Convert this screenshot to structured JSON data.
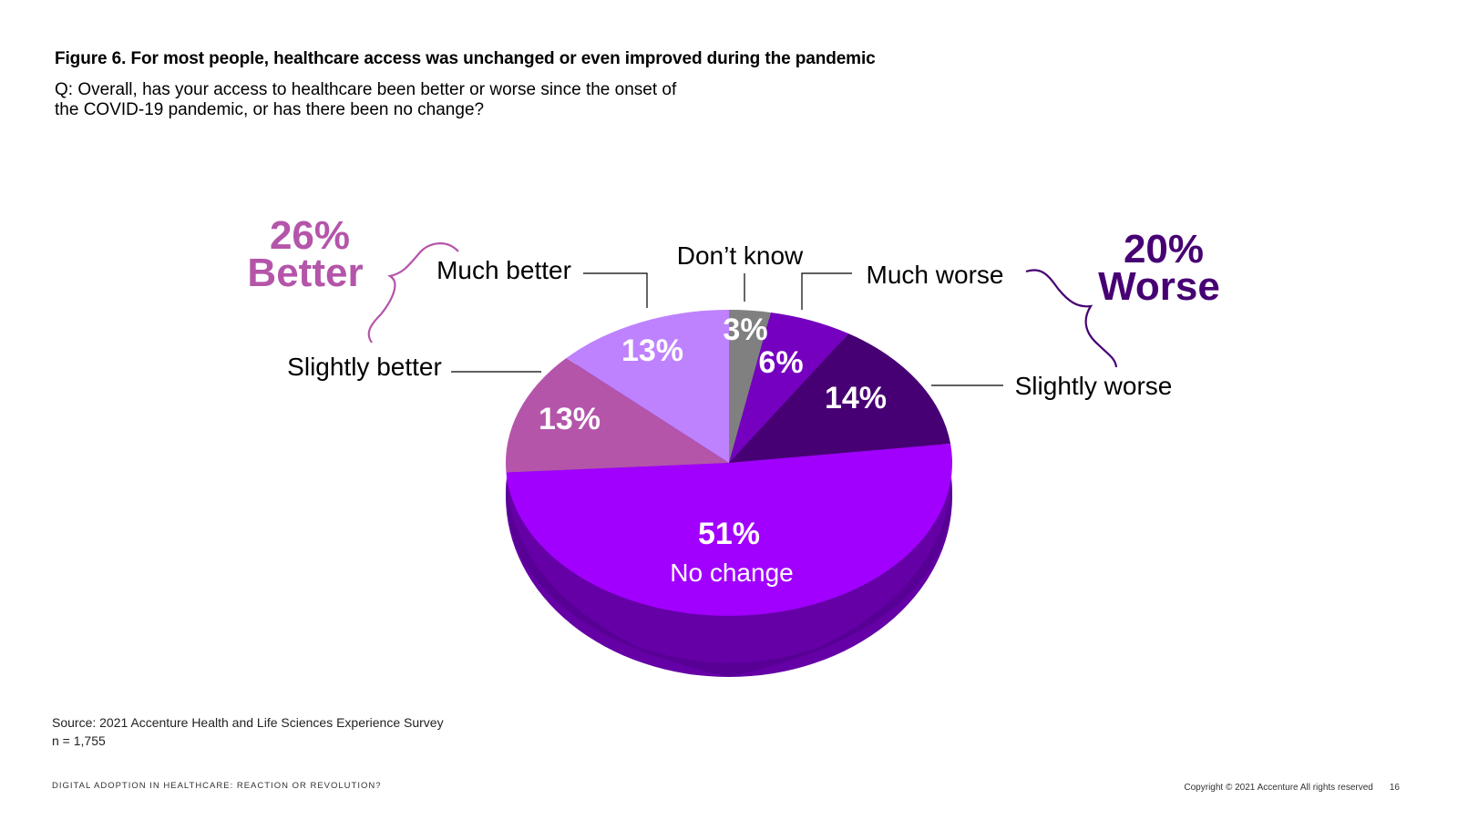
{
  "title": "Figure 6. For most people, healthcare access was unchanged or even improved during the pandemic",
  "question_line1": "Q: Overall, has your access to healthcare been better or worse since the onset of",
  "question_line2": "the COVID-19 pandemic, or has there been no change?",
  "chart_data": {
    "type": "pie",
    "title": "Figure 6. For most people, healthcare access was unchanged or even improved during the pandemic",
    "slices": [
      {
        "name": "Don’t know",
        "value": 3,
        "label": "3%",
        "color": "#808080"
      },
      {
        "name": "Much worse",
        "value": 6,
        "label": "6%",
        "color": "#7500C0"
      },
      {
        "name": "Slightly worse",
        "value": 14,
        "label": "14%",
        "color": "#460073"
      },
      {
        "name": "No change",
        "value": 51,
        "label": "51%",
        "color": "#A100FF"
      },
      {
        "name": "Slightly better",
        "value": 13,
        "label": "13%",
        "color": "#B455AA"
      },
      {
        "name": "Much better",
        "value": 13,
        "label": "13%",
        "color": "#BE82FF"
      }
    ],
    "center_label": "No change",
    "groups": [
      {
        "label": "26%",
        "sublabel": "Better",
        "color": "#B455AA"
      },
      {
        "label": "20%",
        "sublabel": "Worse",
        "color": "#460073"
      }
    ]
  },
  "source_line": "Source: 2021 Accenture Health and Life Sciences Experience Survey",
  "sample_size": "n = 1,755",
  "footer_left": "DIGITAL ADOPTION IN HEALTHCARE: REACTION OR REVOLUTION?",
  "copyright": "Copyright © 2021 Accenture All rights reserved",
  "page_number": "16"
}
